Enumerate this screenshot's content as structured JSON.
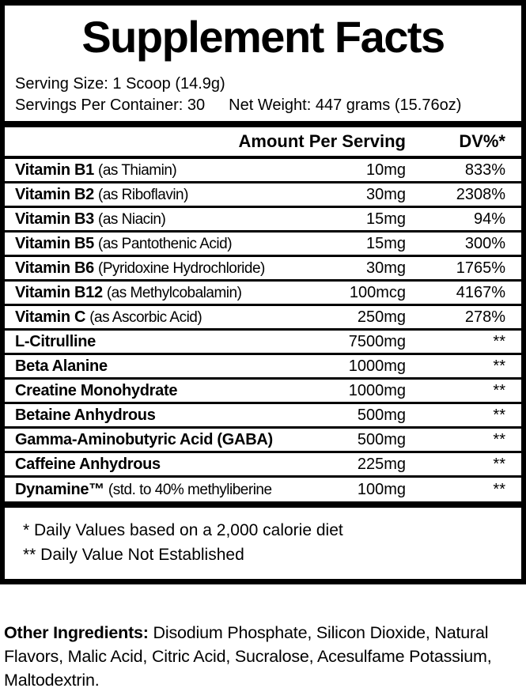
{
  "label": {
    "title": "Supplement Facts",
    "serving_size": "Serving Size: 1 Scoop (14.9g)",
    "servings_per_container": "Servings Per Container: 30",
    "net_weight": "Net Weight: 447 grams (15.76oz)",
    "columns": {
      "amount_header": "Amount Per Serving",
      "dv_header": "DV%*"
    },
    "rows": [
      {
        "name": "Vitamin B1",
        "detail": "(as Thiamin)",
        "amount": "10mg",
        "dv": "833%"
      },
      {
        "name": "Vitamin B2",
        "detail": "(as Riboflavin)",
        "amount": "30mg",
        "dv": "2308%"
      },
      {
        "name": "Vitamin B3",
        "detail": "(as Niacin)",
        "amount": "15mg",
        "dv": "94%"
      },
      {
        "name": "Vitamin B5",
        "detail": "(as Pantothenic Acid)",
        "amount": "15mg",
        "dv": "300%"
      },
      {
        "name": "Vitamin B6",
        "detail": "(Pyridoxine Hydrochloride)",
        "amount": "30mg",
        "dv": "1765%"
      },
      {
        "name": "Vitamin B12",
        "detail": "(as Methylcobalamin)",
        "amount": "100mcg",
        "dv": "4167%"
      },
      {
        "name": "Vitamin C",
        "detail": "(as Ascorbic Acid)",
        "amount": "250mg",
        "dv": "278%"
      },
      {
        "name": "L-Citrulline",
        "detail": "",
        "amount": "7500mg",
        "dv": "**"
      },
      {
        "name": "Beta Alanine",
        "detail": "",
        "amount": "1000mg",
        "dv": "**"
      },
      {
        "name": "Creatine Monohydrate",
        "detail": "",
        "amount": "1000mg",
        "dv": "**"
      },
      {
        "name": "Betaine Anhydrous",
        "detail": "",
        "amount": "500mg",
        "dv": "**"
      },
      {
        "name": "Gamma-Aminobutyric Acid (GABA)",
        "detail": "",
        "amount": "500mg",
        "dv": "**"
      },
      {
        "name": "Caffeine Anhydrous",
        "detail": "",
        "amount": "225mg",
        "dv": "**"
      },
      {
        "name": "Dynamine™",
        "detail": "(std. to 40% methyliberine",
        "amount": "100mg",
        "dv": "**"
      }
    ],
    "footnotes": [
      "* Daily Values based on a 2,000 calorie diet",
      "** Daily Value Not Established"
    ]
  },
  "other_ingredients": {
    "label": "Other Ingredients:",
    "text": " Disodium Phosphate, Silicon Dioxide, Natural Flavors, Malic Acid, Citric Acid, Sucralose, Acesulfame Potassium, Maltodextrin."
  }
}
